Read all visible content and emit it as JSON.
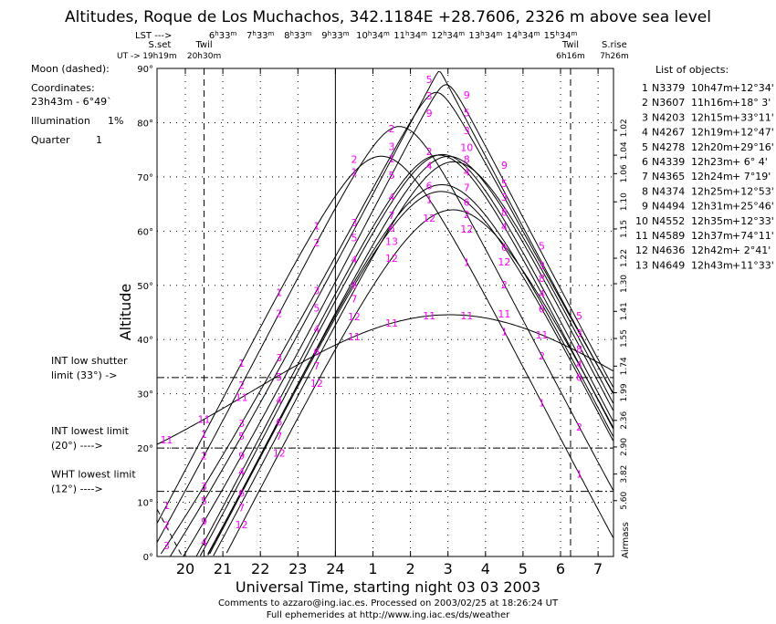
{
  "chart_data": {
    "type": "line",
    "title": "Altitudes, Roque de Los Muchachos, 342.1184E +28.7606, 2326 m above sea level",
    "xlabel": "Universal Time, starting night 03 03 2003",
    "ylabel": "Altitude",
    "right_axis_label": "Airmass",
    "latitude_deg": 28.7606,
    "x_ticks": [
      "20",
      "21",
      "22",
      "23",
      "24",
      "1",
      "2",
      "3",
      "4",
      "5",
      "6",
      "7"
    ],
    "x_range_ut_hours": [
      19.25,
      31.41
    ],
    "y_ticks": [
      "0°",
      "10°",
      "20°",
      "30°",
      "40°",
      "50°",
      "60°",
      "70°",
      "80°",
      "90°"
    ],
    "ylim": [
      0,
      90
    ],
    "lst_label": "LST --->",
    "lst_ticks": [
      "6h33m",
      "7h33m",
      "8h33m",
      "9h33m",
      "10h34m",
      "11h34m",
      "12h34m",
      "13h34m",
      "14h34m",
      "15h34m"
    ],
    "lst_start": {
      "ut": 21,
      "lst": 6.55
    },
    "ut_label": "UT ->",
    "events": [
      {
        "name": "S.set",
        "time": "19h19m",
        "ut": 19.317,
        "line": false
      },
      {
        "name": "Twil",
        "time": "20h30m",
        "ut": 20.5,
        "line": true
      },
      {
        "name": "Twil",
        "time": "6h16m",
        "ut": 30.267,
        "line": true
      },
      {
        "name": "S.rise",
        "time": "7h26m",
        "ut": 31.433,
        "line": false
      }
    ],
    "airmass_ticks": [
      {
        "label": "1.02",
        "alt": 78.6
      },
      {
        "label": "1.04",
        "alt": 74.0
      },
      {
        "label": "1.06",
        "alt": 70.6
      },
      {
        "label": "1.10",
        "alt": 65.4
      },
      {
        "label": "1.15",
        "alt": 60.4
      },
      {
        "label": "1.22",
        "alt": 55.0
      },
      {
        "label": "1.30",
        "alt": 50.3
      },
      {
        "label": "1.41",
        "alt": 45.2
      },
      {
        "label": "1.55",
        "alt": 40.2
      },
      {
        "label": "1.74",
        "alt": 35.1
      },
      {
        "label": "1.99",
        "alt": 30.2
      },
      {
        "label": "2.36",
        "alt": 25.1
      },
      {
        "label": "2.90",
        "alt": 20.2
      },
      {
        "label": "3.82",
        "alt": 15.2
      },
      {
        "label": "5.60",
        "alt": 10.3
      }
    ],
    "limits": [
      {
        "alt": 33,
        "label1": "INT low shutter",
        "label2": "limit (33°) ->"
      },
      {
        "alt": 20,
        "label1": "INT lowest limit",
        "label2": "(20°) ---->"
      },
      {
        "alt": 12,
        "label1": "WHT lowest limit",
        "label2": "(12°) ---->"
      }
    ],
    "series": [
      {
        "id": "1",
        "name": "N3379",
        "ra": "10h47m",
        "dec": "+12°34'",
        "ra_h": 10.783,
        "dec_d": 12.567
      },
      {
        "id": "2",
        "name": "N3607",
        "ra": "11h16m",
        "dec": "+18° 3'",
        "ra_h": 11.267,
        "dec_d": 18.05
      },
      {
        "id": "3",
        "name": "N4203",
        "ra": "12h15m",
        "dec": "+33°11'",
        "ra_h": 12.25,
        "dec_d": 33.183
      },
      {
        "id": "4",
        "name": "N4267",
        "ra": "12h19m",
        "dec": "+12°47'",
        "ra_h": 12.317,
        "dec_d": 12.783
      },
      {
        "id": "5",
        "name": "N4278",
        "ra": "12h20m",
        "dec": "+29°16'",
        "ra_h": 12.333,
        "dec_d": 29.267
      },
      {
        "id": "6",
        "name": "N4339",
        "ra": "12h23m",
        "dec": "+ 6° 4'",
        "ra_h": 12.383,
        "dec_d": 6.067
      },
      {
        "id": "7",
        "name": "N4365",
        "ra": "12h24m",
        "dec": "+ 7°19'",
        "ra_h": 12.4,
        "dec_d": 7.317
      },
      {
        "id": "8",
        "name": "N4374",
        "ra": "12h25m",
        "dec": "+12°53'",
        "ra_h": 12.417,
        "dec_d": 12.883
      },
      {
        "id": "9",
        "name": "N4494",
        "ra": "12h31m",
        "dec": "+25°46'",
        "ra_h": 12.517,
        "dec_d": 25.767
      },
      {
        "id": "10",
        "name": "N4552",
        "ra": "12h35m",
        "dec": "+12°33'",
        "ra_h": 12.583,
        "dec_d": 12.55
      },
      {
        "id": "11",
        "name": "N4589",
        "ra": "12h37m",
        "dec": "+74°11'",
        "ra_h": 12.617,
        "dec_d": 74.183
      },
      {
        "id": "12",
        "name": "N4636",
        "ra": "12h42m",
        "dec": "+ 2°41'",
        "ra_h": 12.7,
        "dec_d": 2.683
      },
      {
        "id": "13",
        "name": "N4649",
        "ra": "12h43m",
        "dec": "+11°33'",
        "ra_h": 12.717,
        "dec_d": 11.55
      }
    ],
    "moon": {
      "ra_h": 23.717,
      "dec_d": -6.817
    }
  },
  "moon_info": {
    "title": "Moon (dashed):",
    "coords_label": "Coordinates:",
    "coords": "23h43m  - 6°49`",
    "illumination_label": "Illumination",
    "illumination": "1%",
    "quarter_label": "Quarter",
    "quarter": "1"
  },
  "list_title": "List of objects:",
  "footer": {
    "line1": "Comments to azzaro@ing.iac.es. Processed on 2003/02/25 at 18:26:24 UT",
    "line2": "Full ephemerides at http://www.ing.iac.es/ds/weather"
  },
  "colors": {
    "label": "#ff00ff",
    "line": "#000000"
  }
}
